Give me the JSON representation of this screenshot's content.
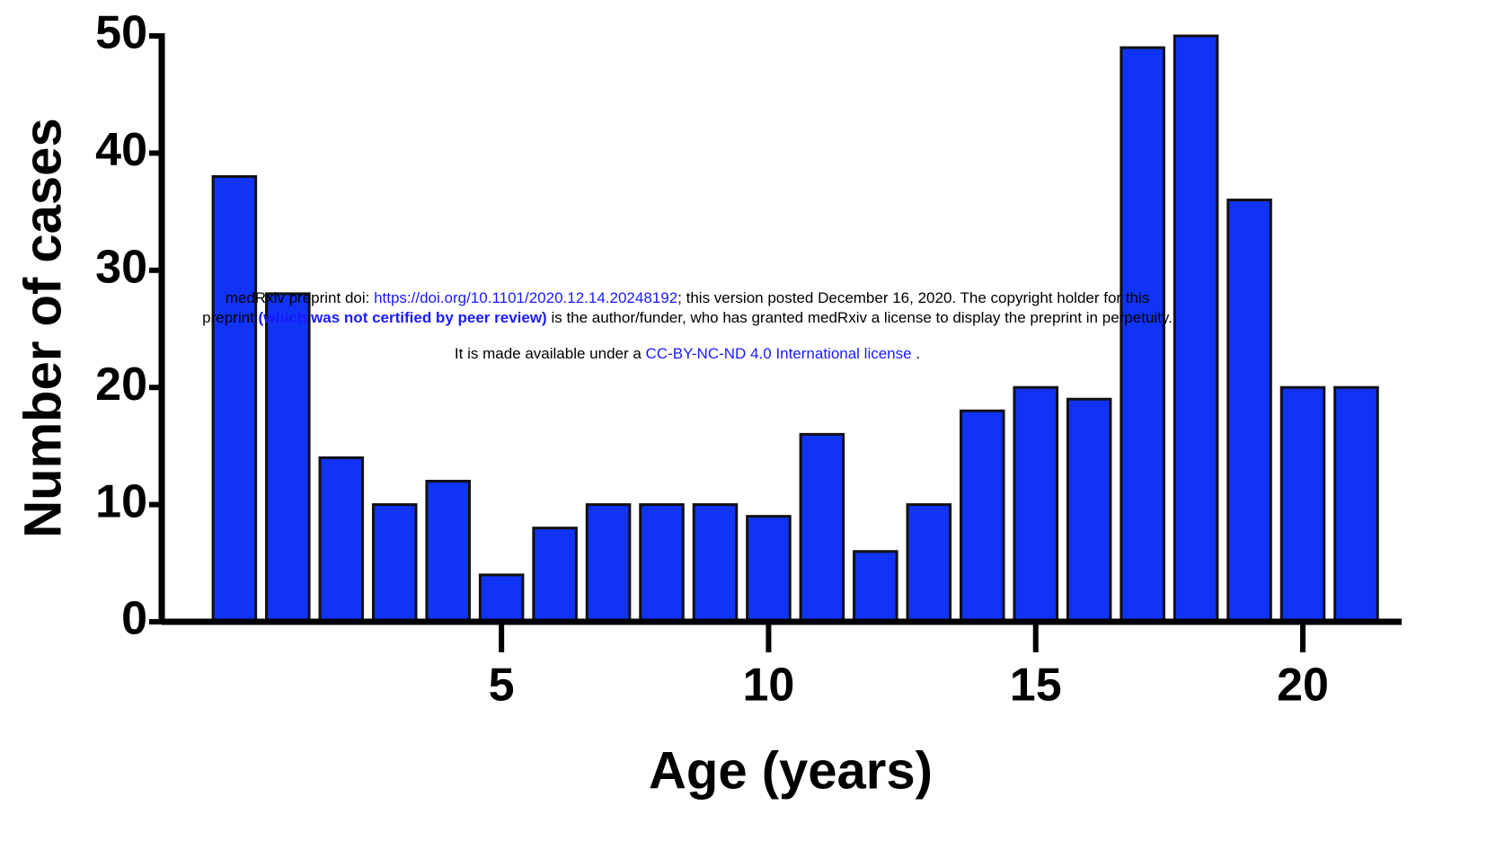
{
  "chart_data": {
    "type": "bar",
    "xlabel": "Age (years)",
    "ylabel": "Number of cases",
    "x": [
      0,
      1,
      2,
      3,
      4,
      5,
      6,
      7,
      8,
      9,
      10,
      11,
      12,
      13,
      14,
      15,
      16,
      17,
      18,
      19,
      20,
      21
    ],
    "values": [
      38,
      28,
      14,
      10,
      12,
      4,
      8,
      10,
      10,
      10,
      9,
      16,
      6,
      10,
      18,
      20,
      19,
      49,
      50,
      36,
      20,
      20
    ],
    "color": "#1133f5",
    "xlim": [
      -1.36,
      21.85
    ],
    "xticks": [
      5,
      10,
      15,
      20
    ],
    "ylim": [
      0,
      50
    ],
    "yticks": [
      0,
      10,
      20,
      30,
      40,
      50
    ],
    "grid": false
  },
  "notice": {
    "line1": [
      "medRxiv preprint doi: ",
      "https://doi.org/10.1101/2020.12.14.20248192",
      "; this version posted December 16, 2020. The copyright holder for this"
    ],
    "line2": [
      "preprint ",
      "(which was not certified by peer review)",
      " is the author/funder, who has granted medRxiv a license to display the preprint in perpetuity."
    ],
    "line3": [
      "It is made available under a ",
      "CC-BY-NC-ND 4.0 International license",
      " ."
    ]
  }
}
